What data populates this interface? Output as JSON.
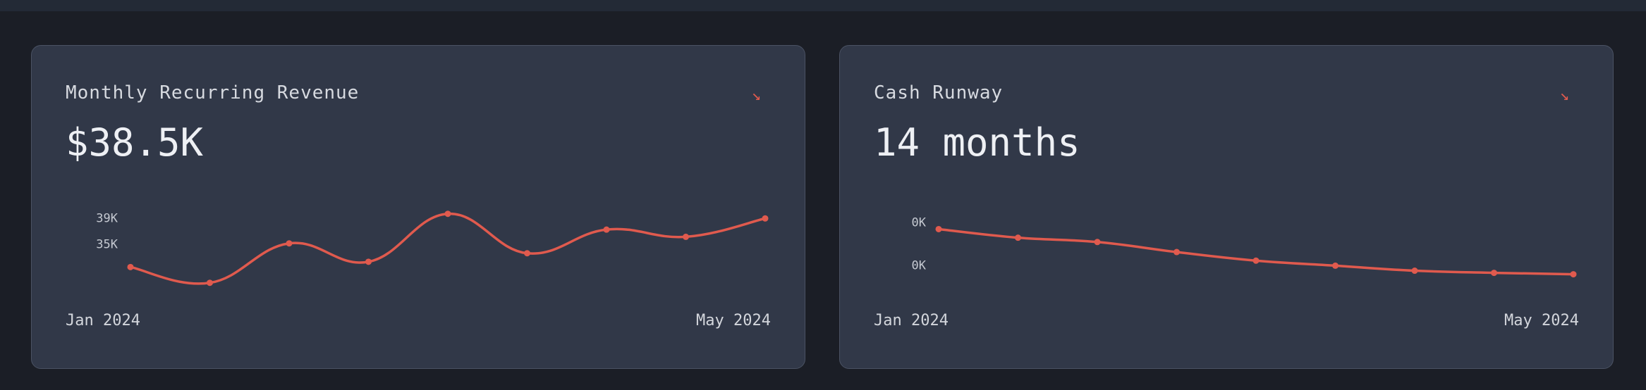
{
  "colors": {
    "background": "#1b1e26",
    "card": "#313848",
    "line": "#e05a4e",
    "text": "#d8dbe2"
  },
  "cards": [
    {
      "title": "Monthly Recurring Revenue",
      "value": "$38.5K",
      "trend_icon": "trend-down-icon",
      "trend_glyph": "↘",
      "x_start_label": "Jan 2024",
      "x_end_label": "May 2024"
    },
    {
      "title": "Cash Runway",
      "value": "14 months",
      "trend_icon": "trend-down-icon",
      "trend_glyph": "↘",
      "x_start_label": "Jan 2024",
      "x_end_label": "May 2024"
    }
  ],
  "chart_data": [
    {
      "type": "line",
      "title": "Monthly Recurring Revenue",
      "y_ticks": [
        {
          "label": "39K",
          "value": 39
        },
        {
          "label": "35K",
          "value": 35
        }
      ],
      "x_labels": [
        "Jan 2024",
        "May 2024"
      ],
      "series": [
        {
          "values": [
            31.5,
            29.1,
            35.1,
            32.3,
            39.6,
            33.6,
            37.2,
            36.1,
            38.9
          ]
        }
      ],
      "ylim": [
        28,
        40
      ],
      "grid": false,
      "smooth": true
    },
    {
      "type": "line",
      "title": "Cash Runway",
      "y_ticks": [
        {
          "label": "0K",
          "value": 0.4
        },
        {
          "label": "0K",
          "value": -0.2
        }
      ],
      "x_labels": [
        "Jan 2024",
        "May 2024"
      ],
      "series": [
        {
          "values": [
            0.3,
            0.18,
            0.12,
            -0.02,
            -0.14,
            -0.21,
            -0.28,
            -0.31,
            -0.33
          ]
        }
      ],
      "ylim": [
        -0.55,
        0.55
      ],
      "grid": false,
      "smooth": true
    }
  ]
}
